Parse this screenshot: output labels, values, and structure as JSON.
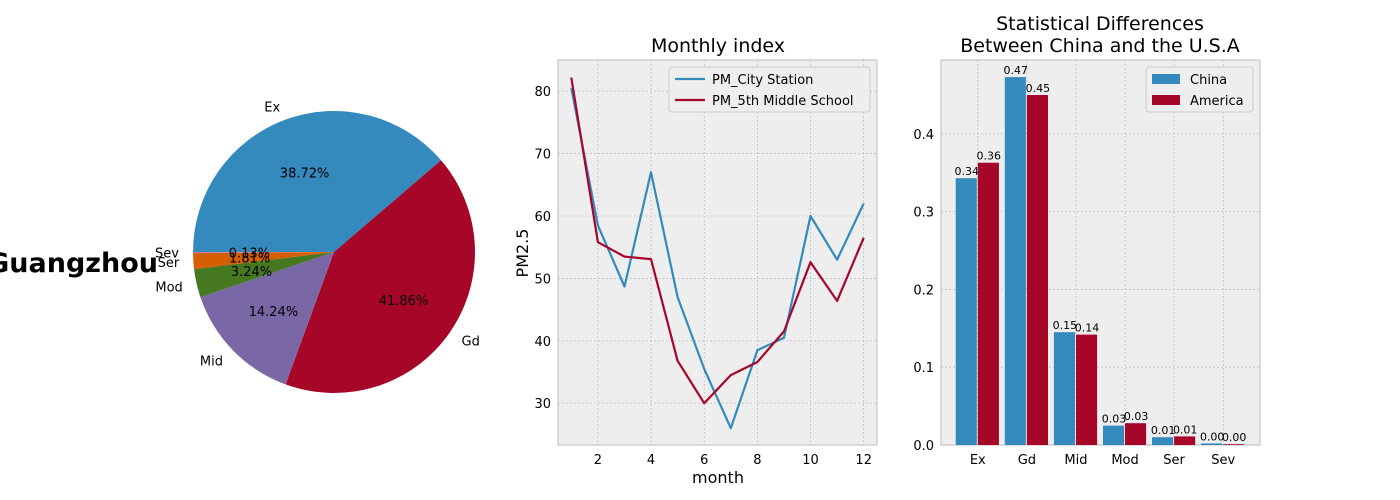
{
  "colors": {
    "blue": "#348ABD",
    "red": "#A60628",
    "purple": "#7A68A6",
    "green": "#467821",
    "orange": "#D55E00",
    "grey": "#BCBCBC",
    "axes_bg": "#EEEEEE"
  },
  "chart_data": [
    {
      "type": "pie",
      "side_label": "Guangzhou",
      "title": "",
      "slices": [
        {
          "label": "Ex",
          "value": 38.72,
          "pct": "38.72%",
          "color": "#348ABD"
        },
        {
          "label": "Gd",
          "value": 41.86,
          "pct": "41.86%",
          "color": "#A60628"
        },
        {
          "label": "Mid",
          "value": 14.24,
          "pct": "14.24%",
          "color": "#7A68A6"
        },
        {
          "label": "Mod",
          "value": 3.24,
          "pct": "3.24%",
          "color": "#467821"
        },
        {
          "label": "Ser",
          "value": 1.81,
          "pct": "1.81%",
          "color": "#D55E00"
        },
        {
          "label": "Sev",
          "value": 0.13,
          "pct": "0.13%",
          "color": "#CC79A7"
        }
      ]
    },
    {
      "type": "line",
      "title": "Monthly index",
      "xlabel": "month",
      "ylabel": "PM2.5",
      "xlim": [
        0.5,
        12.5
      ],
      "ylim": [
        23.3,
        85
      ],
      "xticks": [
        2,
        4,
        6,
        8,
        10,
        12
      ],
      "yticks": [
        30,
        40,
        50,
        60,
        70,
        80
      ],
      "grid": true,
      "legend": "top-right",
      "x": [
        1,
        2,
        3,
        4,
        5,
        6,
        7,
        8,
        9,
        10,
        11,
        12
      ],
      "series": [
        {
          "name": "PM_City Station",
          "color": "#348ABD",
          "values": [
            80.5,
            58.5,
            48.7,
            67.0,
            47.0,
            35.5,
            26.0,
            38.5,
            40.5,
            60.0,
            53.0,
            62.0
          ]
        },
        {
          "name": "PM_5th Middle School",
          "color": "#A60628",
          "values": [
            82.2,
            55.8,
            53.5,
            53.1,
            36.8,
            30.0,
            34.5,
            36.6,
            41.5,
            52.6,
            46.4,
            56.5
          ]
        }
      ]
    },
    {
      "type": "bar",
      "title": "Statistical Differences\nBetween China and the U.S.A",
      "title_lines": [
        "Statistical Differences",
        "Between China and the U.S.A"
      ],
      "categories": [
        "Ex",
        "Gd",
        "Mid",
        "Mod",
        "Ser",
        "Sev"
      ],
      "ylim": [
        0,
        0.495
      ],
      "yticks": [
        0.0,
        0.1,
        0.2,
        0.3,
        0.4
      ],
      "ytick_labels": [
        "0.0",
        "0.1",
        "0.2",
        "0.3",
        "0.4"
      ],
      "grid": true,
      "legend": "top-right",
      "series": [
        {
          "name": "China",
          "color": "#348ABD",
          "values": [
            0.343,
            0.473,
            0.145,
            0.025,
            0.01,
            0.002
          ],
          "labels": [
            "0.34",
            "0.47",
            "0.15",
            "0.03",
            "0.01",
            "0.00"
          ]
        },
        {
          "name": "America",
          "color": "#A60628",
          "values": [
            0.363,
            0.45,
            0.142,
            0.028,
            0.011,
            0.001
          ],
          "labels": [
            "0.36",
            "0.45",
            "0.14",
            "0.03",
            "0.01",
            "0.00"
          ]
        }
      ]
    }
  ]
}
